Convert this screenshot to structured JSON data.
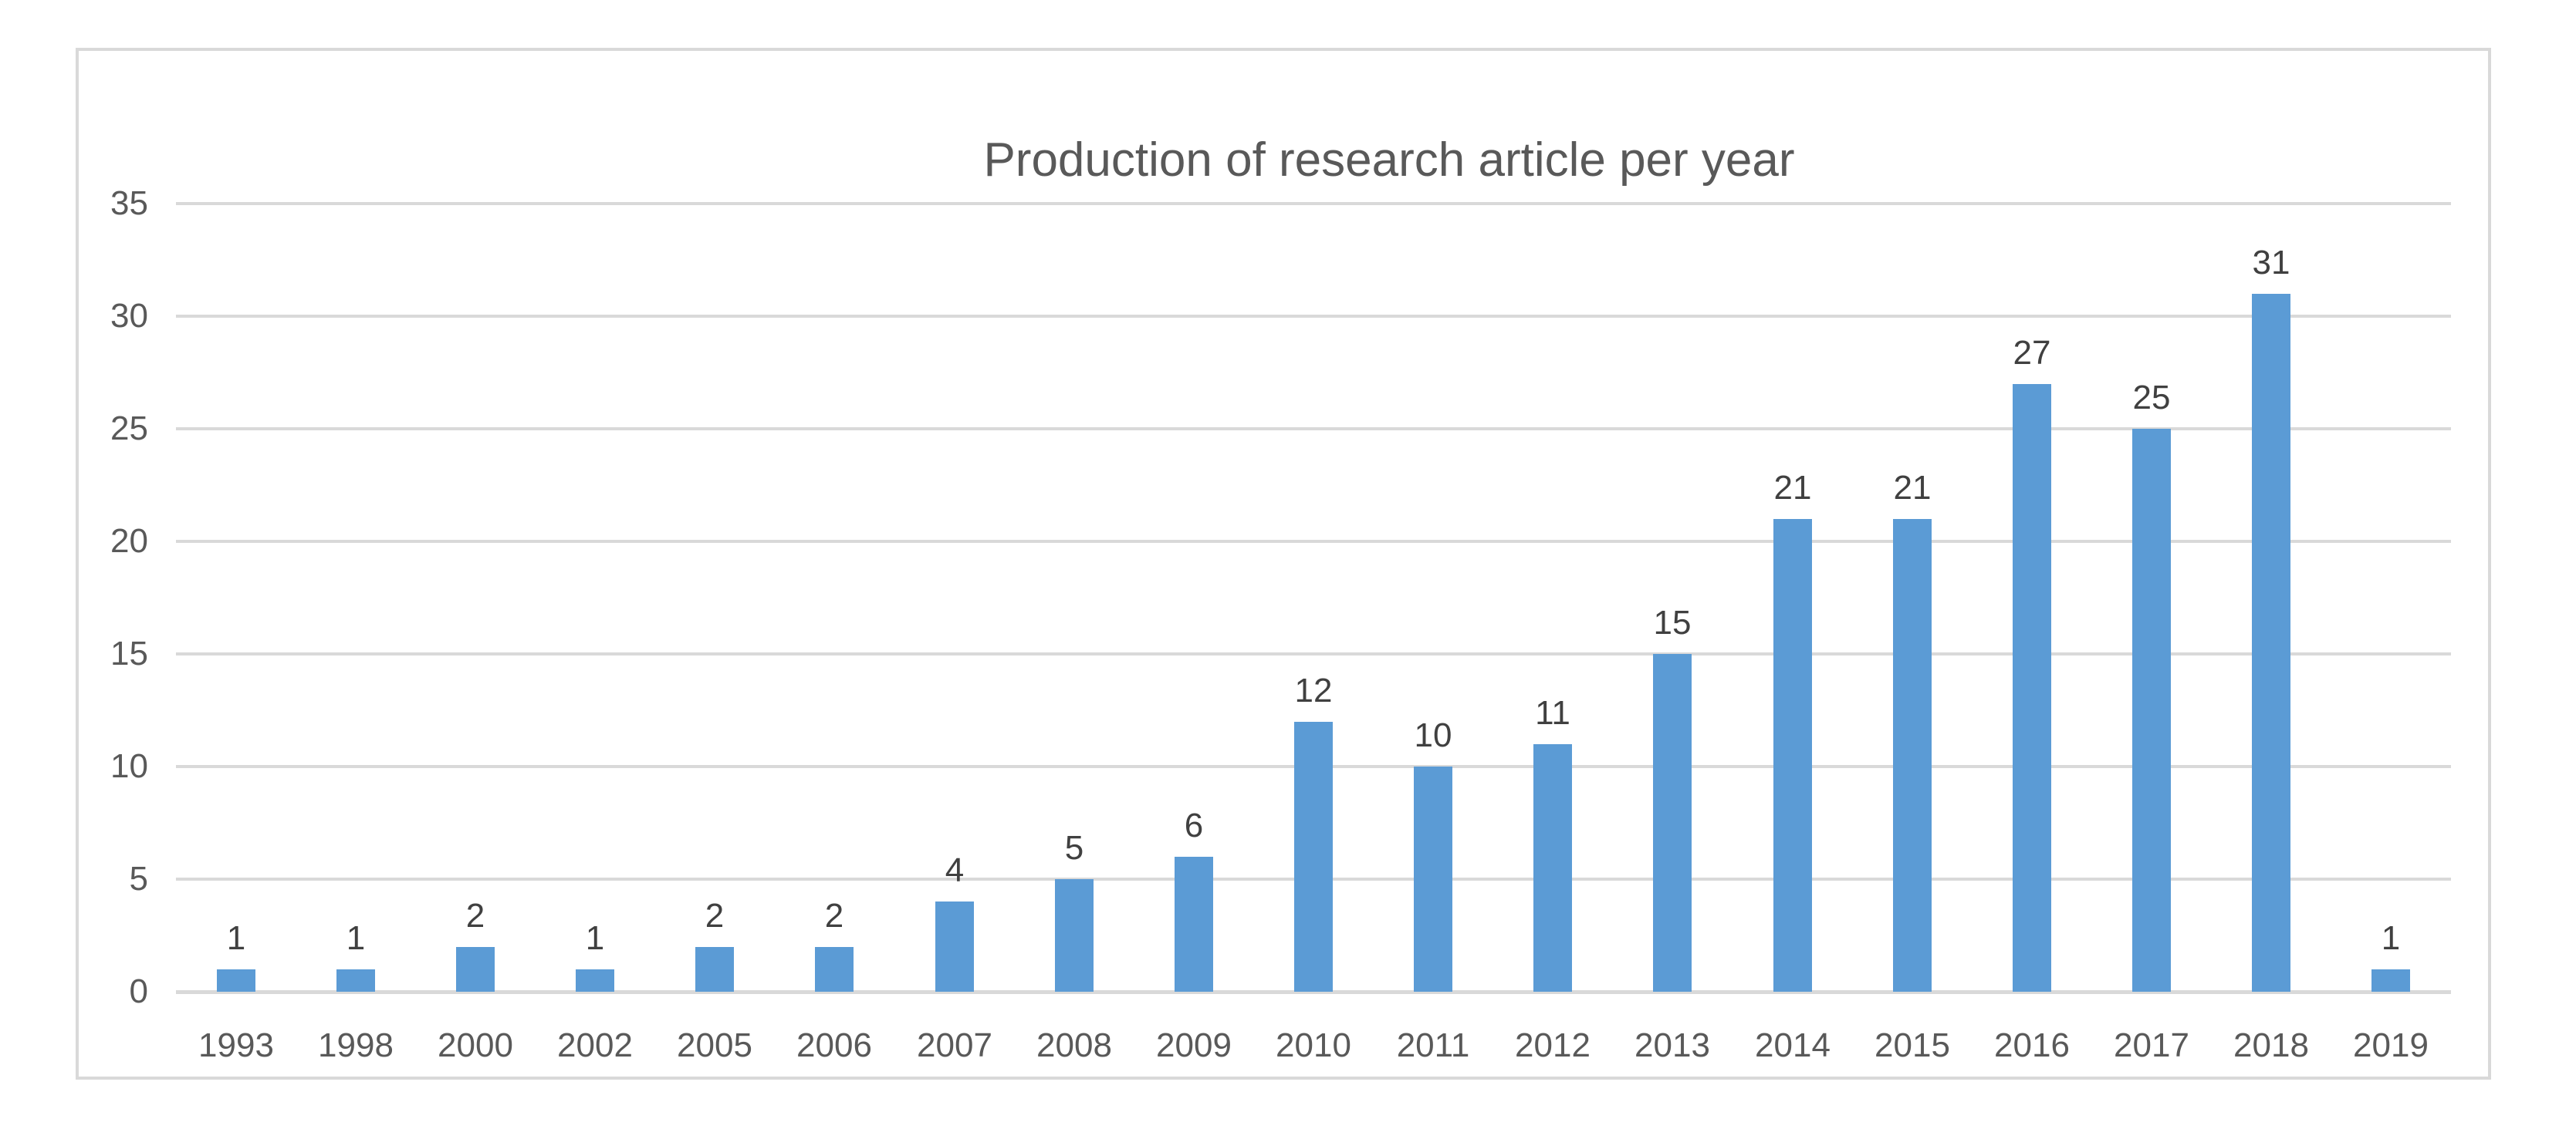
{
  "title": "Production of research article per year",
  "colors": {
    "background": "#FFFFFF",
    "bar": "#5B9BD5",
    "gridline": "#D9D9D9",
    "frame_border": "#D9D9D9",
    "title_text": "#595959",
    "tick_text": "#595959",
    "data_label_text": "#404040"
  },
  "chart_data": {
    "type": "bar",
    "title": "Production of research article per year",
    "categories": [
      "1993",
      "1998",
      "2000",
      "2002",
      "2005",
      "2006",
      "2007",
      "2008",
      "2009",
      "2010",
      "2011",
      "2012",
      "2013",
      "2014",
      "2015",
      "2016",
      "2017",
      "2018",
      "2019"
    ],
    "values": [
      1,
      1,
      2,
      1,
      2,
      2,
      4,
      5,
      6,
      12,
      10,
      11,
      15,
      21,
      21,
      27,
      25,
      31,
      1
    ],
    "xlabel": "",
    "ylabel": "",
    "ylim": [
      0,
      35
    ],
    "ytick_step": 5,
    "ytick_labels": [
      "0",
      "5",
      "10",
      "15",
      "20",
      "25",
      "30",
      "35"
    ],
    "grid": true,
    "legend": false,
    "data_labels": true,
    "series_name": ""
  }
}
